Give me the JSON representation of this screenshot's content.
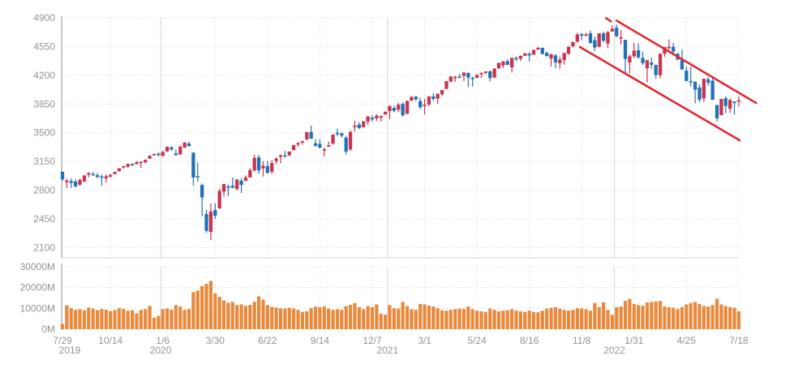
{
  "chart_data": {
    "type": "candlestick",
    "title": "",
    "legend": "none",
    "grid": "dotted",
    "price_axis": {
      "ticks": [
        4900,
        4550,
        4200,
        3850,
        3500,
        3150,
        2800,
        2450,
        2100
      ],
      "max": 4900,
      "min": 2100
    },
    "volume_axis": {
      "tick_values": [
        30000,
        20000,
        10000,
        0
      ],
      "tick_labels": [
        "30000M",
        "20000M",
        "10000M",
        "0M"
      ],
      "max": 30000
    },
    "x_axis": {
      "ticks": [
        {
          "label": "7/29",
          "week": 0
        },
        {
          "label": "10/14",
          "week": 11
        },
        {
          "label": "1/6",
          "week": 23
        },
        {
          "label": "3/30",
          "week": 35
        },
        {
          "label": "6/22",
          "week": 47
        },
        {
          "label": "9/14",
          "week": 59
        },
        {
          "label": "12/7",
          "week": 71
        },
        {
          "label": "3/1",
          "week": 83
        },
        {
          "label": "5/24",
          "week": 95
        },
        {
          "label": "8/16",
          "week": 107
        },
        {
          "label": "11/8",
          "week": 119
        },
        {
          "label": "1/31",
          "week": 131
        },
        {
          "label": "4/25",
          "week": 143
        },
        {
          "label": "7/18",
          "week": 155
        }
      ],
      "year_labels": [
        {
          "label": "2019",
          "week": 0
        },
        {
          "label": "2020",
          "week": 23
        },
        {
          "label": "2021",
          "week": 75
        },
        {
          "label": "2022",
          "week": 127
        }
      ],
      "year_boundary_weeks": [
        23,
        75,
        127
      ]
    },
    "columns": [
      "date",
      "open",
      "high",
      "low",
      "close",
      "volume_M"
    ],
    "weeks": [
      [
        "7/29/2019",
        3023,
        3028,
        2914,
        2932,
        2500
      ],
      [
        "8/5/2019",
        2898,
        2939,
        2822,
        2918,
        11500
      ],
      [
        "8/12/2019",
        2912,
        2943,
        2826,
        2889,
        10200
      ],
      [
        "8/19/2019",
        2905,
        2931,
        2834,
        2847,
        9300
      ],
      [
        "8/26/2019",
        2867,
        2940,
        2853,
        2926,
        9600
      ],
      [
        "9/2/2019",
        2909,
        2985,
        2891,
        2979,
        9100
      ],
      [
        "9/9/2019",
        2989,
        3021,
        2957,
        3007,
        10400
      ],
      [
        "9/16/2019",
        2997,
        3022,
        2977,
        2992,
        9900
      ],
      [
        "9/23/2019",
        2983,
        3010,
        2945,
        2962,
        9200
      ],
      [
        "9/30/2019",
        2967,
        2993,
        2855,
        2952,
        9700
      ],
      [
        "10/7/2019",
        2944,
        2993,
        2893,
        2970,
        9400
      ],
      [
        "10/14/2019",
        2965,
        3000,
        2955,
        2986,
        8700
      ],
      [
        "10/21/2019",
        2996,
        3027,
        2991,
        3022,
        9200
      ],
      [
        "10/28/2019",
        3032,
        3069,
        3025,
        3067,
        10100
      ],
      [
        "11/4/2019",
        3078,
        3097,
        3065,
        3093,
        9800
      ],
      [
        "11/11/2019",
        3087,
        3120,
        3075,
        3120,
        8900
      ],
      [
        "11/18/2019",
        3122,
        3127,
        3091,
        3110,
        9100
      ],
      [
        "11/25/2019",
        3117,
        3154,
        3117,
        3141,
        7600
      ],
      [
        "12/2/2019",
        3143,
        3150,
        3070,
        3146,
        9300
      ],
      [
        "12/9/2019",
        3141,
        3176,
        3126,
        3169,
        9600
      ],
      [
        "12/16/2019",
        3183,
        3226,
        3183,
        3221,
        11200
      ],
      [
        "12/23/2019",
        3226,
        3248,
        3220,
        3240,
        5600
      ],
      [
        "12/30/2019",
        3244,
        3259,
        3212,
        3235,
        6400
      ],
      [
        "1/6/2020",
        3217,
        3282,
        3214,
        3265,
        9700
      ],
      [
        "1/13/2020",
        3271,
        3330,
        3268,
        3330,
        10000
      ],
      [
        "1/20/2020",
        3322,
        3338,
        3281,
        3295,
        9400
      ],
      [
        "1/27/2020",
        3247,
        3293,
        3235,
        3225,
        11600
      ],
      [
        "2/3/2020",
        3235,
        3347,
        3235,
        3328,
        10900
      ],
      [
        "2/10/2020",
        3318,
        3385,
        3317,
        3380,
        9300
      ],
      [
        "2/17/2020",
        3369,
        3394,
        3328,
        3338,
        9700
      ],
      [
        "2/24/2020",
        3257,
        3260,
        2856,
        2954,
        17800
      ],
      [
        "3/2/2020",
        2974,
        3137,
        2901,
        2972,
        18600
      ],
      [
        "3/9/2020",
        2863,
        2882,
        2479,
        2711,
        20700
      ],
      [
        "3/16/2020",
        2509,
        2562,
        2281,
        2305,
        21800
      ],
      [
        "3/23/2020",
        2290,
        2637,
        2192,
        2541,
        23200
      ],
      [
        "3/30/2020",
        2558,
        2641,
        2448,
        2489,
        17200
      ],
      [
        "4/6/2020",
        2578,
        2819,
        2574,
        2790,
        15600
      ],
      [
        "4/13/2020",
        2782,
        2875,
        2721,
        2875,
        13800
      ],
      [
        "4/20/2020",
        2845,
        2868,
        2727,
        2837,
        12700
      ],
      [
        "4/27/2020",
        2854,
        2955,
        2821,
        2831,
        13100
      ],
      [
        "5/4/2020",
        2815,
        2932,
        2797,
        2930,
        11600
      ],
      [
        "5/11/2020",
        2915,
        2945,
        2766,
        2864,
        11900
      ],
      [
        "5/18/2020",
        2913,
        2980,
        2913,
        2955,
        11200
      ],
      [
        "5/25/2020",
        2956,
        3068,
        2953,
        3044,
        11700
      ],
      [
        "6/1/2020",
        3038,
        3233,
        3038,
        3194,
        13200
      ],
      [
        "6/8/2020",
        3199,
        3233,
        2999,
        3041,
        15800
      ],
      [
        "6/15/2020",
        3066,
        3155,
        2965,
        3098,
        14200
      ],
      [
        "6/22/2020",
        3094,
        3154,
        3004,
        3009,
        11600
      ],
      [
        "6/29/2020",
        3025,
        3165,
        2999,
        3130,
        10700
      ],
      [
        "7/6/2020",
        3155,
        3200,
        3115,
        3185,
        10400
      ],
      [
        "7/13/2020",
        3205,
        3238,
        3127,
        3225,
        10100
      ],
      [
        "7/20/2020",
        3224,
        3279,
        3200,
        3216,
        9900
      ],
      [
        "7/27/2020",
        3225,
        3272,
        3214,
        3271,
        10300
      ],
      [
        "8/3/2020",
        3289,
        3352,
        3284,
        3351,
        9900
      ],
      [
        "8/10/2020",
        3356,
        3387,
        3328,
        3373,
        9300
      ],
      [
        "8/17/2020",
        3380,
        3399,
        3354,
        3397,
        8300
      ],
      [
        "8/24/2020",
        3418,
        3509,
        3413,
        3508,
        8600
      ],
      [
        "8/31/2020",
        3509,
        3588,
        3427,
        3427,
        10200
      ],
      [
        "9/7/2020",
        3371,
        3424,
        3329,
        3341,
        10800
      ],
      [
        "9/14/2020",
        3364,
        3420,
        3310,
        3319,
        10600
      ],
      [
        "9/21/2020",
        3285,
        3323,
        3209,
        3298,
        11000
      ],
      [
        "9/28/2020",
        3333,
        3393,
        3323,
        3348,
        9900
      ],
      [
        "10/5/2020",
        3367,
        3482,
        3354,
        3477,
        9300
      ],
      [
        "10/12/2020",
        3500,
        3550,
        3458,
        3484,
        9600
      ],
      [
        "10/19/2020",
        3493,
        3502,
        3440,
        3465,
        9300
      ],
      [
        "10/26/2020",
        3441,
        3461,
        3234,
        3270,
        11100
      ],
      [
        "11/2/2020",
        3296,
        3529,
        3280,
        3509,
        11700
      ],
      [
        "11/9/2020",
        3583,
        3646,
        3511,
        3585,
        12600
      ],
      [
        "11/16/2020",
        3600,
        3628,
        3543,
        3558,
        10600
      ],
      [
        "11/23/2020",
        3566,
        3646,
        3566,
        3638,
        9600
      ],
      [
        "11/30/2020",
        3634,
        3700,
        3594,
        3699,
        11100
      ],
      [
        "12/7/2020",
        3683,
        3712,
        3633,
        3663,
        10600
      ],
      [
        "12/14/2020",
        3675,
        3726,
        3645,
        3709,
        11900
      ],
      [
        "12/21/2020",
        3685,
        3711,
        3636,
        3703,
        7400
      ],
      [
        "12/28/2020",
        3723,
        3760,
        3723,
        3756,
        7000
      ],
      [
        "1/4/2021",
        3764,
        3832,
        3663,
        3825,
        11600
      ],
      [
        "1/11/2021",
        3803,
        3827,
        3749,
        3768,
        10100
      ],
      [
        "1/18/2021",
        3781,
        3861,
        3749,
        3841,
        9900
      ],
      [
        "1/25/2021",
        3851,
        3870,
        3694,
        3714,
        13100
      ],
      [
        "2/1/2021",
        3731,
        3894,
        3725,
        3887,
        11100
      ],
      [
        "2/8/2021",
        3892,
        3950,
        3885,
        3935,
        9600
      ],
      [
        "2/15/2021",
        3939,
        3950,
        3885,
        3907,
        9300
      ],
      [
        "2/22/2021",
        3885,
        3928,
        3789,
        3811,
        12100
      ],
      [
        "3/1/2021",
        3842,
        3914,
        3723,
        3842,
        11900
      ],
      [
        "3/8/2021",
        3844,
        3944,
        3819,
        3943,
        11300
      ],
      [
        "3/15/2021",
        3942,
        3984,
        3887,
        3913,
        10900
      ],
      [
        "3/22/2021",
        3916,
        3978,
        3854,
        3975,
        10100
      ],
      [
        "3/29/2021",
        3969,
        4020,
        3944,
        4020,
        9100
      ],
      [
        "4/5/2021",
        4034,
        4131,
        4034,
        4129,
        8900
      ],
      [
        "4/12/2021",
        4124,
        4191,
        4118,
        4185,
        9300
      ],
      [
        "4/19/2021",
        4179,
        4194,
        4118,
        4180,
        9600
      ],
      [
        "4/26/2021",
        4185,
        4218,
        4176,
        4181,
        9900
      ],
      [
        "5/3/2021",
        4192,
        4238,
        4129,
        4233,
        9700
      ],
      [
        "5/10/2021",
        4228,
        4236,
        4057,
        4174,
        10900
      ],
      [
        "5/17/2021",
        4169,
        4183,
        4061,
        4156,
        9600
      ],
      [
        "5/24/2021",
        4170,
        4213,
        4170,
        4204,
        8900
      ],
      [
        "5/31/2021",
        4216,
        4234,
        4167,
        4230,
        8600
      ],
      [
        "6/7/2021",
        4229,
        4249,
        4215,
        4247,
        8300
      ],
      [
        "6/14/2021",
        4248,
        4257,
        4126,
        4166,
        9900
      ],
      [
        "6/21/2021",
        4173,
        4286,
        4165,
        4281,
        9300
      ],
      [
        "6/28/2021",
        4284,
        4355,
        4279,
        4352,
        8600
      ],
      [
        "7/5/2021",
        4320,
        4371,
        4289,
        4370,
        8900
      ],
      [
        "7/12/2021",
        4372,
        4394,
        4322,
        4327,
        9100
      ],
      [
        "7/19/2021",
        4296,
        4415,
        4233,
        4412,
        9600
      ],
      [
        "7/26/2021",
        4410,
        4430,
        4372,
        4395,
        8900
      ],
      [
        "8/2/2021",
        4402,
        4441,
        4373,
        4437,
        8600
      ],
      [
        "8/9/2021",
        4437,
        4468,
        4436,
        4468,
        8300
      ],
      [
        "8/16/2021",
        4462,
        4480,
        4368,
        4442,
        8900
      ],
      [
        "8/23/2021",
        4450,
        4513,
        4450,
        4509,
        8300
      ],
      [
        "8/30/2021",
        4513,
        4546,
        4513,
        4535,
        8100
      ],
      [
        "9/6/2021",
        4535,
        4536,
        4457,
        4459,
        8900
      ],
      [
        "9/13/2021",
        4474,
        4486,
        4428,
        4433,
        9900
      ],
      [
        "9/20/2021",
        4403,
        4465,
        4306,
        4455,
        10300
      ],
      [
        "9/27/2021",
        4442,
        4457,
        4288,
        4357,
        10600
      ],
      [
        "10/4/2021",
        4348,
        4429,
        4278,
        4391,
        9900
      ],
      [
        "10/11/2021",
        4385,
        4475,
        4329,
        4471,
        9300
      ],
      [
        "10/18/2021",
        4463,
        4559,
        4447,
        4545,
        8900
      ],
      [
        "10/25/2021",
        4553,
        4608,
        4537,
        4605,
        9300
      ],
      [
        "11/1/2021",
        4610,
        4718,
        4595,
        4698,
        10100
      ],
      [
        "11/8/2021",
        4701,
        4714,
        4630,
        4683,
        9900
      ],
      [
        "11/15/2021",
        4689,
        4717,
        4672,
        4698,
        9600
      ],
      [
        "11/22/2021",
        4712,
        4744,
        4585,
        4595,
        8900
      ],
      [
        "11/29/2021",
        4628,
        4672,
        4495,
        4538,
        12600
      ],
      [
        "12/6/2021",
        4548,
        4713,
        4540,
        4712,
        10600
      ],
      [
        "12/13/2021",
        4710,
        4731,
        4600,
        4621,
        12900
      ],
      [
        "12/20/2021",
        4587,
        4740,
        4531,
        4726,
        9300
      ],
      [
        "12/27/2021",
        4733,
        4808,
        4733,
        4766,
        6900
      ],
      [
        "1/3/2022",
        4778,
        4818,
        4662,
        4677,
        10600
      ],
      [
        "1/10/2022",
        4655,
        4749,
        4573,
        4663,
        10900
      ],
      [
        "1/17/2022",
        4632,
        4632,
        4222,
        4398,
        13600
      ],
      [
        "1/24/2022",
        4356,
        4453,
        4223,
        4432,
        14600
      ],
      [
        "1/31/2022",
        4431,
        4595,
        4414,
        4501,
        12100
      ],
      [
        "2/7/2022",
        4505,
        4590,
        4401,
        4419,
        11600
      ],
      [
        "2/14/2022",
        4413,
        4489,
        4327,
        4349,
        11300
      ],
      [
        "2/21/2022",
        4284,
        4385,
        4114,
        4385,
        12900
      ],
      [
        "2/28/2022",
        4355,
        4416,
        4279,
        4329,
        13100
      ],
      [
        "3/7/2022",
        4327,
        4327,
        4158,
        4204,
        13300
      ],
      [
        "3/14/2022",
        4202,
        4465,
        4161,
        4463,
        13600
      ],
      [
        "3/21/2022",
        4462,
        4546,
        4424,
        4543,
        10900
      ],
      [
        "3/28/2022",
        4541,
        4637,
        4507,
        4546,
        10600
      ],
      [
        "4/4/2022",
        4547,
        4593,
        4450,
        4488,
        10300
      ],
      [
        "4/11/2022",
        4462,
        4471,
        4381,
        4393,
        9600
      ],
      [
        "4/18/2022",
        4385,
        4513,
        4267,
        4272,
        10600
      ],
      [
        "4/25/2022",
        4255,
        4308,
        4124,
        4132,
        11900
      ],
      [
        "5/2/2022",
        4130,
        4308,
        4062,
        4123,
        12600
      ],
      [
        "5/9/2022",
        4122,
        4122,
        3858,
        4024,
        13100
      ],
      [
        "5/16/2022",
        4052,
        4090,
        3875,
        3901,
        12100
      ],
      [
        "5/23/2022",
        3919,
        4158,
        3875,
        4158,
        11100
      ],
      [
        "5/30/2022",
        4151,
        4177,
        4073,
        4109,
        10900
      ],
      [
        "6/6/2022",
        4134,
        4168,
        3900,
        3901,
        11600
      ],
      [
        "6/13/2022",
        3838,
        3838,
        3637,
        3675,
        14600
      ],
      [
        "6/20/2022",
        3715,
        3913,
        3715,
        3912,
        11900
      ],
      [
        "6/27/2022",
        3920,
        3946,
        3738,
        3825,
        11100
      ],
      [
        "7/4/2022",
        3792,
        3918,
        3742,
        3899,
        10600
      ],
      [
        "7/11/2022",
        3880,
        3880,
        3721,
        3863,
        10300
      ],
      [
        "7/18/2022",
        3883,
        3945,
        3818,
        3895,
        8600
      ]
    ],
    "trendlines": {
      "description": "descending channel annotation",
      "lines": [
        {
          "from_week": 127.0,
          "from_price": 4866,
          "to_week": 159.0,
          "to_price": 3862
        },
        {
          "from_week": 118.6,
          "from_price": 4544,
          "to_week": 155.2,
          "to_price": 3408
        },
        {
          "from_week": 124.6,
          "from_price": 4896,
          "to_week": 125.7,
          "to_price": 4858
        }
      ]
    },
    "colors": {
      "up_candle": "#c9344e",
      "down_candle": "#2471b5",
      "volume_bar": "#e8893c",
      "trend_line": "#df2935",
      "grid_line": "#dcdcdc",
      "year_line": "#d6d6d6",
      "axis_line": "#c8c8c8",
      "label_text": "#949494"
    }
  }
}
